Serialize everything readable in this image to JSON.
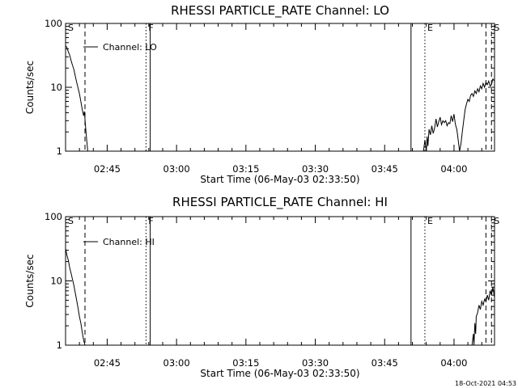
{
  "figure": {
    "timestamp": "18-Oct-2021 04:53"
  },
  "chart_data": [
    {
      "type": "line",
      "title": "RHESSI PARTICLE_RATE Channel: LO",
      "xlabel": "Start Time (06-May-03 02:33:50)",
      "ylabel": "Counts/sec",
      "xlim": [
        2.6,
        4.146
      ],
      "ylim": [
        1,
        100
      ],
      "yscale": "log",
      "x_ticks": [
        {
          "value": 2.75,
          "label": "02:45"
        },
        {
          "value": 3.0,
          "label": "03:00"
        },
        {
          "value": 3.25,
          "label": "03:15"
        },
        {
          "value": 3.5,
          "label": "03:30"
        },
        {
          "value": 3.75,
          "label": "03:45"
        },
        {
          "value": 4.0,
          "label": "04:00"
        }
      ],
      "y_ticks": [
        {
          "value": 1,
          "label": "1"
        },
        {
          "value": 10,
          "label": "10"
        },
        {
          "value": 100,
          "label": "100"
        }
      ],
      "legend": {
        "label": "Channel: LO",
        "position": "top-left"
      },
      "markers": [
        {
          "label": "S",
          "x": 2.6,
          "style": "none"
        },
        {
          "label": "",
          "x": 2.67,
          "style": "dashed"
        },
        {
          "label": "F",
          "x": 2.89,
          "style": "dotted"
        },
        {
          "label": "",
          "x": 2.905,
          "style": "solid"
        },
        {
          "label": "",
          "x": 3.845,
          "style": "solid"
        },
        {
          "label": "E",
          "x": 3.895,
          "style": "dotted"
        },
        {
          "label": "",
          "x": 4.115,
          "style": "dashed"
        },
        {
          "label": "S",
          "x": 4.135,
          "style": "dashed"
        }
      ],
      "series": [
        {
          "name": "Channel: LO",
          "segments": [
            {
              "x": [
                2.6,
                2.605,
                2.61,
                2.615,
                2.62,
                2.625,
                2.63,
                2.635,
                2.64,
                2.645,
                2.65,
                2.655,
                2.66,
                2.665,
                2.668,
                2.672,
                2.676,
                2.68
              ],
              "y": [
                45,
                42,
                36,
                32,
                26,
                22,
                19,
                15,
                12,
                9.8,
                8,
                6,
                4.5,
                3.6,
                4.2,
                2.4,
                1.5,
                1
              ]
            },
            {
              "x": [
                3.89,
                3.895,
                3.9,
                3.903,
                3.906,
                3.91,
                3.915,
                3.92,
                3.925,
                3.93,
                3.935,
                3.94,
                3.945,
                3.95,
                3.955,
                3.96,
                3.965,
                3.97,
                3.975,
                3.98,
                3.985,
                3.99,
                3.995,
                4.0,
                4.005,
                4.01,
                4.015,
                4.02,
                4.025,
                4.03,
                4.035,
                4.04,
                4.045,
                4.05,
                4.055,
                4.06,
                4.065,
                4.07,
                4.075,
                4.08,
                4.085,
                4.09,
                4.095,
                4.1,
                4.105,
                4.11,
                4.115,
                4.12,
                4.125,
                4.13,
                4.135,
                4.14,
                4.146
              ],
              "y": [
                1,
                1.5,
                1,
                1.7,
                1.2,
                2.2,
                1.8,
                2.5,
                1.9,
                2.3,
                3.2,
                2.4,
                2.9,
                3.4,
                2.6,
                3.0,
                2.8,
                3.0,
                2.5,
                2.8,
                2.7,
                3.6,
                2.9,
                3.8,
                2.6,
                2.2,
                1.5,
                1.0,
                1.3,
                2.0,
                3.0,
                4.5,
                5.5,
                6.5,
                6.0,
                7.5,
                8.0,
                7.2,
                8.8,
                8.0,
                9.5,
                8.5,
                10.5,
                9.5,
                11.5,
                10.0,
                12.0,
                11.0,
                12.5,
                10.5,
                11.0,
                13.5,
                12.5
              ]
            }
          ]
        }
      ]
    },
    {
      "type": "line",
      "title": "RHESSI PARTICLE_RATE Channel: HI",
      "xlabel": "Start Time (06-May-03 02:33:50)",
      "ylabel": "Counts/sec",
      "xlim": [
        2.6,
        4.146
      ],
      "ylim": [
        1,
        100
      ],
      "yscale": "log",
      "x_ticks": [
        {
          "value": 2.75,
          "label": "02:45"
        },
        {
          "value": 3.0,
          "label": "03:00"
        },
        {
          "value": 3.25,
          "label": "03:15"
        },
        {
          "value": 3.5,
          "label": "03:30"
        },
        {
          "value": 3.75,
          "label": "03:45"
        },
        {
          "value": 4.0,
          "label": "04:00"
        }
      ],
      "y_ticks": [
        {
          "value": 1,
          "label": "1"
        },
        {
          "value": 10,
          "label": "10"
        },
        {
          "value": 100,
          "label": "100"
        }
      ],
      "legend": {
        "label": "Channel: HI",
        "position": "top-left"
      },
      "markers": [
        {
          "label": "S",
          "x": 2.6,
          "style": "none"
        },
        {
          "label": "",
          "x": 2.67,
          "style": "dashed"
        },
        {
          "label": "F",
          "x": 2.89,
          "style": "dotted"
        },
        {
          "label": "",
          "x": 2.905,
          "style": "solid"
        },
        {
          "label": "",
          "x": 3.845,
          "style": "solid"
        },
        {
          "label": "E",
          "x": 3.895,
          "style": "dotted"
        },
        {
          "label": "",
          "x": 4.115,
          "style": "dashed"
        },
        {
          "label": "S",
          "x": 4.135,
          "style": "dashed"
        }
      ],
      "series": [
        {
          "name": "Channel: HI",
          "segments": [
            {
              "x": [
                2.6,
                2.605,
                2.61,
                2.615,
                2.62,
                2.625,
                2.63,
                2.635,
                2.64,
                2.645,
                2.65,
                2.655,
                2.66,
                2.665,
                2.67
              ],
              "y": [
                32,
                25,
                21,
                16,
                13,
                10.5,
                8.5,
                6.5,
                5,
                3.8,
                2.8,
                2.2,
                1.6,
                1.2,
                1
              ]
            },
            {
              "x": [
                4.065,
                4.07,
                4.072,
                4.075,
                4.078,
                4.08,
                4.085,
                4.09,
                4.095,
                4.1,
                4.105,
                4.11,
                4.115,
                4.12,
                4.125,
                4.13,
                4.135,
                4.14,
                4.146
              ],
              "y": [
                1,
                1.5,
                1,
                2.2,
                1.5,
                2.8,
                3.2,
                4.2,
                3.6,
                4.8,
                4.2,
                5.2,
                4.8,
                6.0,
                5.0,
                7.0,
                6.0,
                8.0,
                5.5
              ]
            }
          ]
        }
      ]
    }
  ]
}
